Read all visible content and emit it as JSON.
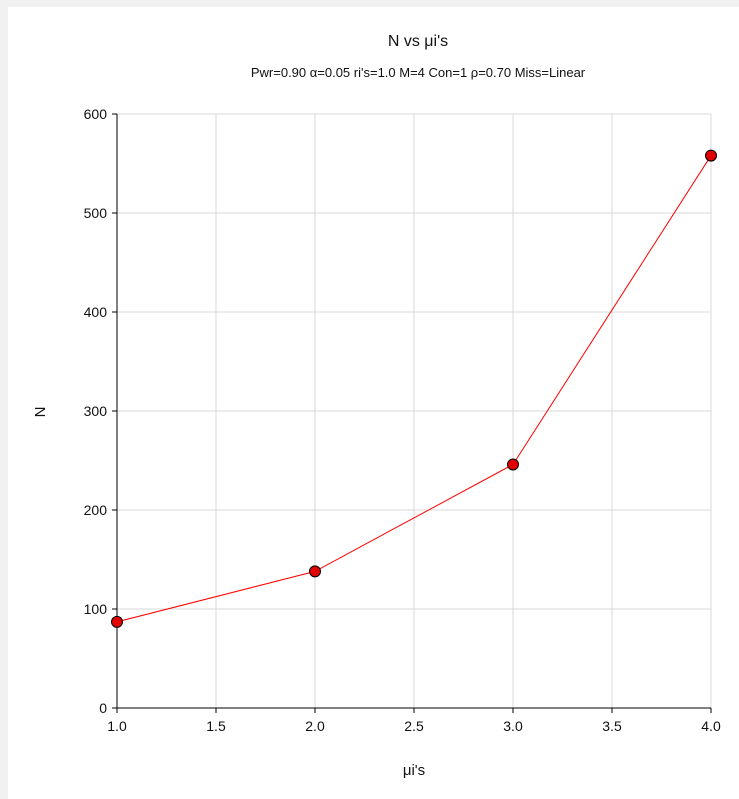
{
  "chart_data": {
    "type": "line",
    "title": "N vs μi's",
    "subtitle": "Pwr=0.90 α=0.05 ri's=1.0 M=4 Con=1 ρ=0.70 Miss=Linear",
    "xlabel": "μi's",
    "ylabel": "N",
    "xlim": [
      1.0,
      4.0
    ],
    "ylim": [
      0,
      600
    ],
    "x_ticks": [
      "1.0",
      "1.5",
      "2.0",
      "2.5",
      "3.0",
      "3.5",
      "4.0"
    ],
    "y_ticks": [
      "0",
      "100",
      "200",
      "300",
      "400",
      "500",
      "600"
    ],
    "grid": true,
    "series": [
      {
        "x": [
          1.0,
          2.0,
          3.0,
          4.0
        ],
        "y": [
          87,
          138,
          246,
          558
        ]
      }
    ],
    "colors": {
      "line": "#ff0000",
      "marker_fill": "#e00000",
      "marker_edge": "#000000",
      "grid": "#d9d9d9",
      "axis": "#000000"
    }
  }
}
